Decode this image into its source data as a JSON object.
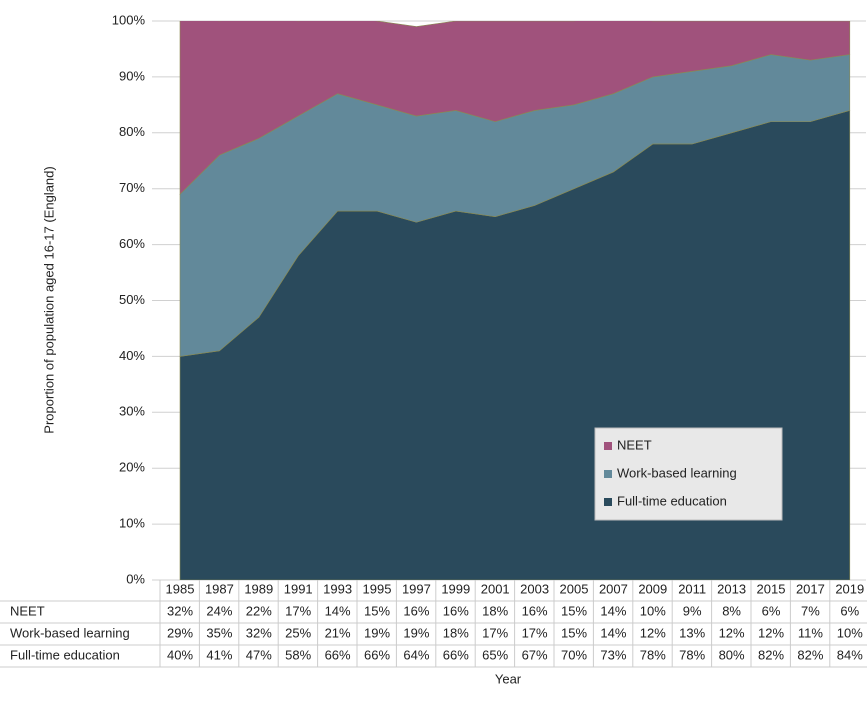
{
  "chart_data": {
    "type": "stacked_area",
    "y_label": "Proportion of population aged 16-17 (England)",
    "x_label": "Year",
    "categories": [
      "1985",
      "1987",
      "1989",
      "1991",
      "1993",
      "1995",
      "1997",
      "1999",
      "2001",
      "2003",
      "2005",
      "2007",
      "2009",
      "2011",
      "2013",
      "2015",
      "2017",
      "2019"
    ],
    "series": [
      {
        "name": "Full-time education",
        "color": "#2a4a5c",
        "values": [
          40,
          41,
          47,
          58,
          66,
          66,
          64,
          66,
          65,
          67,
          70,
          73,
          78,
          78,
          80,
          82,
          82,
          84
        ],
        "value_labels": [
          "40%",
          "41%",
          "47%",
          "58%",
          "66%",
          "66%",
          "64%",
          "66%",
          "65%",
          "67%",
          "70%",
          "73%",
          "78%",
          "78%",
          "80%",
          "82%",
          "82%",
          "84%"
        ]
      },
      {
        "name": "Work-based learning",
        "color": "#62899a",
        "values": [
          29,
          35,
          32,
          25,
          21,
          19,
          19,
          18,
          17,
          17,
          15,
          14,
          12,
          13,
          12,
          12,
          11,
          10
        ],
        "value_labels": [
          "29%",
          "35%",
          "32%",
          "25%",
          "21%",
          "19%",
          "19%",
          "18%",
          "17%",
          "17%",
          "15%",
          "14%",
          "12%",
          "13%",
          "12%",
          "12%",
          "11%",
          "10%"
        ]
      },
      {
        "name": "NEET",
        "color": "#a0527c",
        "values": [
          32,
          24,
          22,
          17,
          14,
          15,
          16,
          16,
          18,
          16,
          15,
          14,
          10,
          9,
          8,
          6,
          7,
          6
        ],
        "value_labels": [
          "32%",
          "24%",
          "22%",
          "17%",
          "14%",
          "15%",
          "16%",
          "16%",
          "18%",
          "16%",
          "15%",
          "14%",
          "10%",
          "9%",
          "8%",
          "6%",
          "7%",
          "6%"
        ]
      }
    ],
    "ylim": [
      0,
      100
    ],
    "yticks": [
      {
        "value": 0,
        "label": "0%"
      },
      {
        "value": 10,
        "label": "10%"
      },
      {
        "value": 20,
        "label": "20%"
      },
      {
        "value": 30,
        "label": "30%"
      },
      {
        "value": 40,
        "label": "40%"
      },
      {
        "value": 50,
        "label": "50%"
      },
      {
        "value": 60,
        "label": "60%"
      },
      {
        "value": 70,
        "label": "70%"
      },
      {
        "value": 80,
        "label": "80%"
      },
      {
        "value": 90,
        "label": "90%"
      },
      {
        "value": 100,
        "label": "100%"
      }
    ],
    "grid": true,
    "legend": "lower right"
  }
}
